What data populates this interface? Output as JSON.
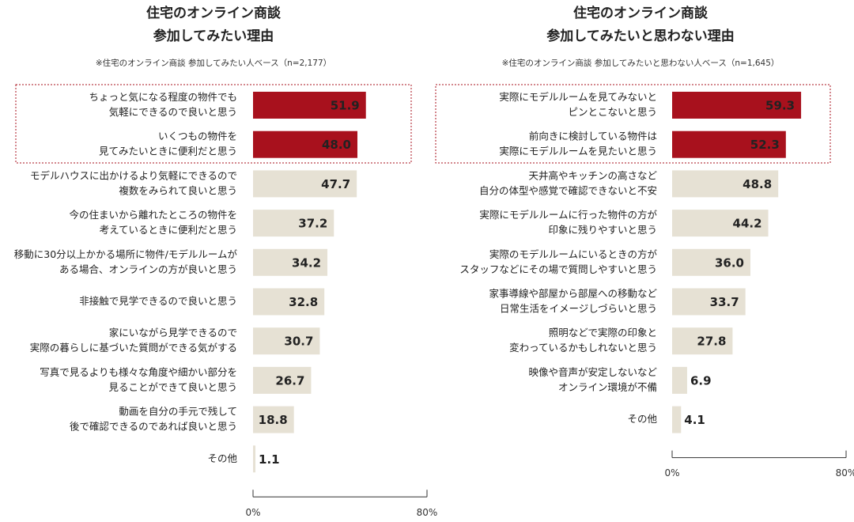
{
  "chart_data": [
    {
      "type": "bar",
      "orientation": "horizontal",
      "title": [
        "住宅のオンライン商談",
        "参加してみたい理由"
      ],
      "subtitle": "※住宅のオンライン商談 参加してみたい人ベース（n=2,177）",
      "categories": [
        [
          "ちょっと気になる程度の物件でも",
          "気軽にできるので良いと思う"
        ],
        [
          "いくつもの物件を",
          "見てみたいときに便利だと思う"
        ],
        [
          "モデルハウスに出かけるより気軽にできるので",
          "複数をみられて良いと思う"
        ],
        [
          "今の住まいから離れたところの物件を",
          "考えているときに便利だと思う"
        ],
        [
          "移動に30分以上かかる場所に物件/モデルルームが",
          "ある場合、オンラインの方が良いと思う"
        ],
        [
          "非接触で見学できるので良いと思う"
        ],
        [
          "家にいながら見学できるので",
          "実際の暮らしに基づいた質問ができる気がする"
        ],
        [
          "写真で見るよりも様々な角度や細かい部分を",
          "見ることができて良いと思う"
        ],
        [
          "動画を自分の手元で残して",
          "後で確認できるのであれば良いと思う"
        ],
        [
          "その他"
        ]
      ],
      "values": [
        51.9,
        48,
        47.7,
        37.2,
        34.2,
        32.8,
        30.7,
        26.7,
        18.8,
        1.1
      ],
      "value_labels": [
        "51.9",
        "48.0",
        "47.7",
        "37.2",
        "34.2",
        "32.8",
        "30.7",
        "26.7",
        "18.8",
        "1.1"
      ],
      "colors": [
        "#a8111d",
        "#a8111d",
        "#e6e1d4",
        "#e6e1d4",
        "#e6e1d4",
        "#e6e1d4",
        "#e6e1d4",
        "#e6e1d4",
        "#e6e1d4",
        "#e6e1d4"
      ],
      "xlim": [
        0,
        80
      ],
      "xticks": [
        {
          "value": 0,
          "label": "0%"
        },
        {
          "value": 80,
          "label": "80%"
        }
      ]
    },
    {
      "type": "bar",
      "orientation": "horizontal",
      "title": [
        "住宅のオンライン商談",
        "参加してみたいと思わない理由"
      ],
      "subtitle": "※住宅のオンライン商談 参加してみたいと思わない人ベース（n=1,645）",
      "categories": [
        [
          "実際にモデルルームを見てみないと",
          "ピンとこないと思う"
        ],
        [
          "前向きに検討している物件は",
          "実際にモデルルームを見たいと思う"
        ],
        [
          "天井高やキッチンの高さなど",
          "自分の体型や感覚で確認できないと不安"
        ],
        [
          "実際にモデルルームに行った物件の方が",
          "印象に残りやすいと思う"
        ],
        [
          "実際のモデルルームにいるときの方が",
          "スタッフなどにその場で質問しやすいと思う"
        ],
        [
          "家事導線や部屋から部屋への移動など",
          "日常生活をイメージしづらいと思う"
        ],
        [
          "照明などで実際の印象と",
          "変わっているかもしれないと思う"
        ],
        [
          "映像や音声が安定しないなど",
          "オンライン環境が不備"
        ],
        [
          "その他"
        ]
      ],
      "values": [
        59.3,
        52.3,
        48.8,
        44.2,
        36,
        33.7,
        27.8,
        6.9,
        4.1
      ],
      "value_labels": [
        "59.3",
        "52.3",
        "48.8",
        "44.2",
        "36.0",
        "33.7",
        "27.8",
        "6.9",
        "4.1"
      ],
      "colors": [
        "#a8111d",
        "#a8111d",
        "#e6e1d4",
        "#e6e1d4",
        "#e6e1d4",
        "#e6e1d4",
        "#e6e1d4",
        "#e6e1d4",
        "#e6e1d4"
      ],
      "xlim": [
        0,
        80
      ],
      "xticks": [
        {
          "value": 0,
          "label": "0%"
        },
        {
          "value": 80,
          "label": "80%"
        }
      ]
    }
  ]
}
